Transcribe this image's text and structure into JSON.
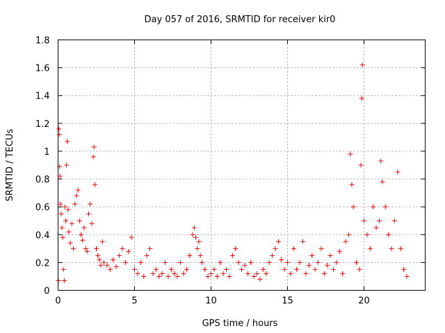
{
  "chart_data": {
    "type": "scatter",
    "title": "Day 057 of 2016, SRMTID for receiver kir0",
    "xlabel": "GPS time / hours",
    "ylabel": "SRMTID / TECUs",
    "xlim": [
      0,
      24
    ],
    "ylim": [
      0,
      1.8
    ],
    "x_ticks": [
      0,
      5,
      10,
      15,
      20
    ],
    "x_tick_labels": [
      "0",
      "5",
      "10",
      "15",
      "20"
    ],
    "y_ticks": [
      0,
      0.2,
      0.4,
      0.6,
      0.8,
      1.0,
      1.2,
      1.4,
      1.6,
      1.8
    ],
    "y_tick_labels": [
      "0",
      "0.2",
      "0.4",
      "0.6",
      "0.8",
      "1",
      "1.2",
      "1.4",
      "1.6",
      "1.8"
    ],
    "grid": true,
    "marker": "+",
    "series": [
      {
        "name": "SRMTID",
        "color": "#ff0000",
        "points": [
          [
            0.02,
            0.07
          ],
          [
            0.05,
            1.16
          ],
          [
            0.08,
            1.12
          ],
          [
            0.1,
            0.89
          ],
          [
            0.12,
            0.82
          ],
          [
            0.15,
            0.62
          ],
          [
            0.2,
            0.55
          ],
          [
            0.25,
            0.45
          ],
          [
            0.3,
            0.38
          ],
          [
            0.35,
            0.15
          ],
          [
            0.4,
            0.07
          ],
          [
            0.45,
            0.6
          ],
          [
            0.5,
            0.5
          ],
          [
            0.55,
            0.9
          ],
          [
            0.6,
            1.07
          ],
          [
            0.65,
            0.58
          ],
          [
            0.7,
            0.42
          ],
          [
            0.8,
            0.34
          ],
          [
            0.9,
            0.48
          ],
          [
            1.0,
            0.3
          ],
          [
            1.1,
            0.62
          ],
          [
            1.2,
            0.68
          ],
          [
            1.3,
            0.72
          ],
          [
            1.4,
            0.5
          ],
          [
            1.5,
            0.4
          ],
          [
            1.6,
            0.36
          ],
          [
            1.7,
            0.45
          ],
          [
            1.8,
            0.3
          ],
          [
            1.9,
            0.28
          ],
          [
            2.0,
            0.55
          ],
          [
            2.1,
            0.62
          ],
          [
            2.2,
            0.48
          ],
          [
            2.3,
            0.96
          ],
          [
            2.35,
            1.03
          ],
          [
            2.4,
            0.76
          ],
          [
            2.5,
            0.3
          ],
          [
            2.6,
            0.25
          ],
          [
            2.7,
            0.22
          ],
          [
            2.8,
            0.18
          ],
          [
            2.9,
            0.35
          ],
          [
            3.0,
            0.2
          ],
          [
            3.2,
            0.18
          ],
          [
            3.4,
            0.15
          ],
          [
            3.6,
            0.22
          ],
          [
            3.8,
            0.17
          ],
          [
            4.0,
            0.25
          ],
          [
            4.2,
            0.3
          ],
          [
            4.4,
            0.2
          ],
          [
            4.6,
            0.28
          ],
          [
            4.8,
            0.38
          ],
          [
            5.0,
            0.15
          ],
          [
            5.2,
            0.12
          ],
          [
            5.4,
            0.2
          ],
          [
            5.6,
            0.1
          ],
          [
            5.8,
            0.25
          ],
          [
            6.0,
            0.3
          ],
          [
            6.2,
            0.12
          ],
          [
            6.4,
            0.15
          ],
          [
            6.6,
            0.1
          ],
          [
            6.8,
            0.12
          ],
          [
            7.0,
            0.2
          ],
          [
            7.2,
            0.1
          ],
          [
            7.4,
            0.15
          ],
          [
            7.6,
            0.12
          ],
          [
            7.8,
            0.1
          ],
          [
            8.0,
            0.2
          ],
          [
            8.2,
            0.12
          ],
          [
            8.4,
            0.15
          ],
          [
            8.6,
            0.25
          ],
          [
            8.8,
            0.4
          ],
          [
            8.9,
            0.45
          ],
          [
            9.0,
            0.38
          ],
          [
            9.1,
            0.3
          ],
          [
            9.2,
            0.35
          ],
          [
            9.3,
            0.25
          ],
          [
            9.4,
            0.2
          ],
          [
            9.6,
            0.15
          ],
          [
            9.8,
            0.1
          ],
          [
            10.0,
            0.12
          ],
          [
            10.2,
            0.15
          ],
          [
            10.4,
            0.1
          ],
          [
            10.6,
            0.2
          ],
          [
            10.8,
            0.12
          ],
          [
            11.0,
            0.15
          ],
          [
            11.2,
            0.1
          ],
          [
            11.4,
            0.25
          ],
          [
            11.6,
            0.3
          ],
          [
            11.8,
            0.2
          ],
          [
            12.0,
            0.15
          ],
          [
            12.2,
            0.18
          ],
          [
            12.4,
            0.12
          ],
          [
            12.6,
            0.2
          ],
          [
            12.8,
            0.1
          ],
          [
            13.0,
            0.12
          ],
          [
            13.2,
            0.08
          ],
          [
            13.4,
            0.15
          ],
          [
            13.6,
            0.12
          ],
          [
            13.8,
            0.2
          ],
          [
            14.0,
            0.25
          ],
          [
            14.2,
            0.3
          ],
          [
            14.4,
            0.35
          ],
          [
            14.6,
            0.22
          ],
          [
            14.8,
            0.15
          ],
          [
            15.0,
            0.2
          ],
          [
            15.2,
            0.12
          ],
          [
            15.4,
            0.3
          ],
          [
            15.6,
            0.15
          ],
          [
            15.8,
            0.2
          ],
          [
            16.0,
            0.35
          ],
          [
            16.2,
            0.12
          ],
          [
            16.4,
            0.18
          ],
          [
            16.6,
            0.25
          ],
          [
            16.8,
            0.15
          ],
          [
            17.0,
            0.2
          ],
          [
            17.2,
            0.3
          ],
          [
            17.4,
            0.12
          ],
          [
            17.6,
            0.18
          ],
          [
            17.8,
            0.25
          ],
          [
            18.0,
            0.15
          ],
          [
            18.2,
            0.2
          ],
          [
            18.4,
            0.28
          ],
          [
            18.6,
            0.12
          ],
          [
            18.8,
            0.35
          ],
          [
            19.0,
            0.4
          ],
          [
            19.1,
            0.98
          ],
          [
            19.2,
            0.76
          ],
          [
            19.3,
            0.6
          ],
          [
            19.5,
            0.2
          ],
          [
            19.7,
            0.15
          ],
          [
            19.8,
            0.9
          ],
          [
            19.85,
            1.38
          ],
          [
            19.9,
            1.62
          ],
          [
            20.0,
            0.5
          ],
          [
            20.2,
            0.4
          ],
          [
            20.4,
            0.3
          ],
          [
            20.6,
            0.6
          ],
          [
            20.8,
            0.45
          ],
          [
            21.0,
            0.5
          ],
          [
            21.1,
            0.93
          ],
          [
            21.2,
            0.78
          ],
          [
            21.4,
            0.6
          ],
          [
            21.6,
            0.4
          ],
          [
            21.8,
            0.3
          ],
          [
            22.0,
            0.5
          ],
          [
            22.2,
            0.85
          ],
          [
            22.4,
            0.3
          ],
          [
            22.6,
            0.15
          ],
          [
            22.8,
            0.1
          ]
        ]
      }
    ]
  }
}
